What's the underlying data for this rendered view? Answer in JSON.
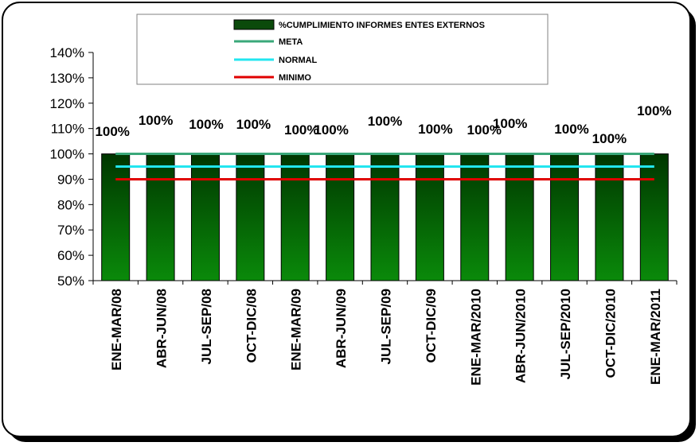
{
  "chart_data": {
    "type": "bar",
    "categories": [
      "ENE-MAR/08",
      "ABR-JUN/08",
      "JUL-SEP/08",
      "OCT-DIC/08",
      "ENE-MAR/09",
      "ABR-JUN/09",
      "JUL-SEP/09",
      "OCT-DIC/09",
      "ENE-MAR/2010",
      "ABR-JUN/2010",
      "JUL-SEP/2010",
      "OCT-DIC/2010",
      "ENE-MAR/2011"
    ],
    "series": [
      {
        "name": "%CUMPLIMIENTO INFORMES ENTES EXTERNOS",
        "type": "bar",
        "color": "#0b7a0b",
        "values": [
          100,
          100,
          100,
          100,
          100,
          100,
          100,
          100,
          100,
          100,
          100,
          100,
          100
        ],
        "labels": [
          "100%",
          "100%",
          "100%",
          "100%",
          "100%",
          "100%",
          "100%",
          "100%",
          "100%",
          "100%",
          "100%",
          "100%",
          "100%"
        ]
      },
      {
        "name": "META",
        "type": "line",
        "color": "#3aa87a",
        "values": [
          100,
          100,
          100,
          100,
          100,
          100,
          100,
          100,
          100,
          100,
          100,
          100,
          100
        ]
      },
      {
        "name": "NORMAL",
        "type": "line",
        "color": "#22e6f0",
        "values": [
          95,
          95,
          95,
          95,
          95,
          95,
          95,
          95,
          95,
          95,
          95,
          95,
          95
        ]
      },
      {
        "name": "MINIMO",
        "type": "line",
        "color": "#e00000",
        "values": [
          90,
          90,
          90,
          90,
          90,
          90,
          90,
          90,
          90,
          90,
          90,
          90,
          90
        ]
      }
    ],
    "ylim": [
      50,
      140
    ],
    "yticks": [
      50,
      60,
      70,
      80,
      90,
      100,
      110,
      120,
      130,
      140
    ],
    "ytick_labels": [
      "50%",
      "60%",
      "70%",
      "80%",
      "90%",
      "100%",
      "110%",
      "120%",
      "130%",
      "140%"
    ],
    "legend_position": "top-center",
    "grid": false
  }
}
